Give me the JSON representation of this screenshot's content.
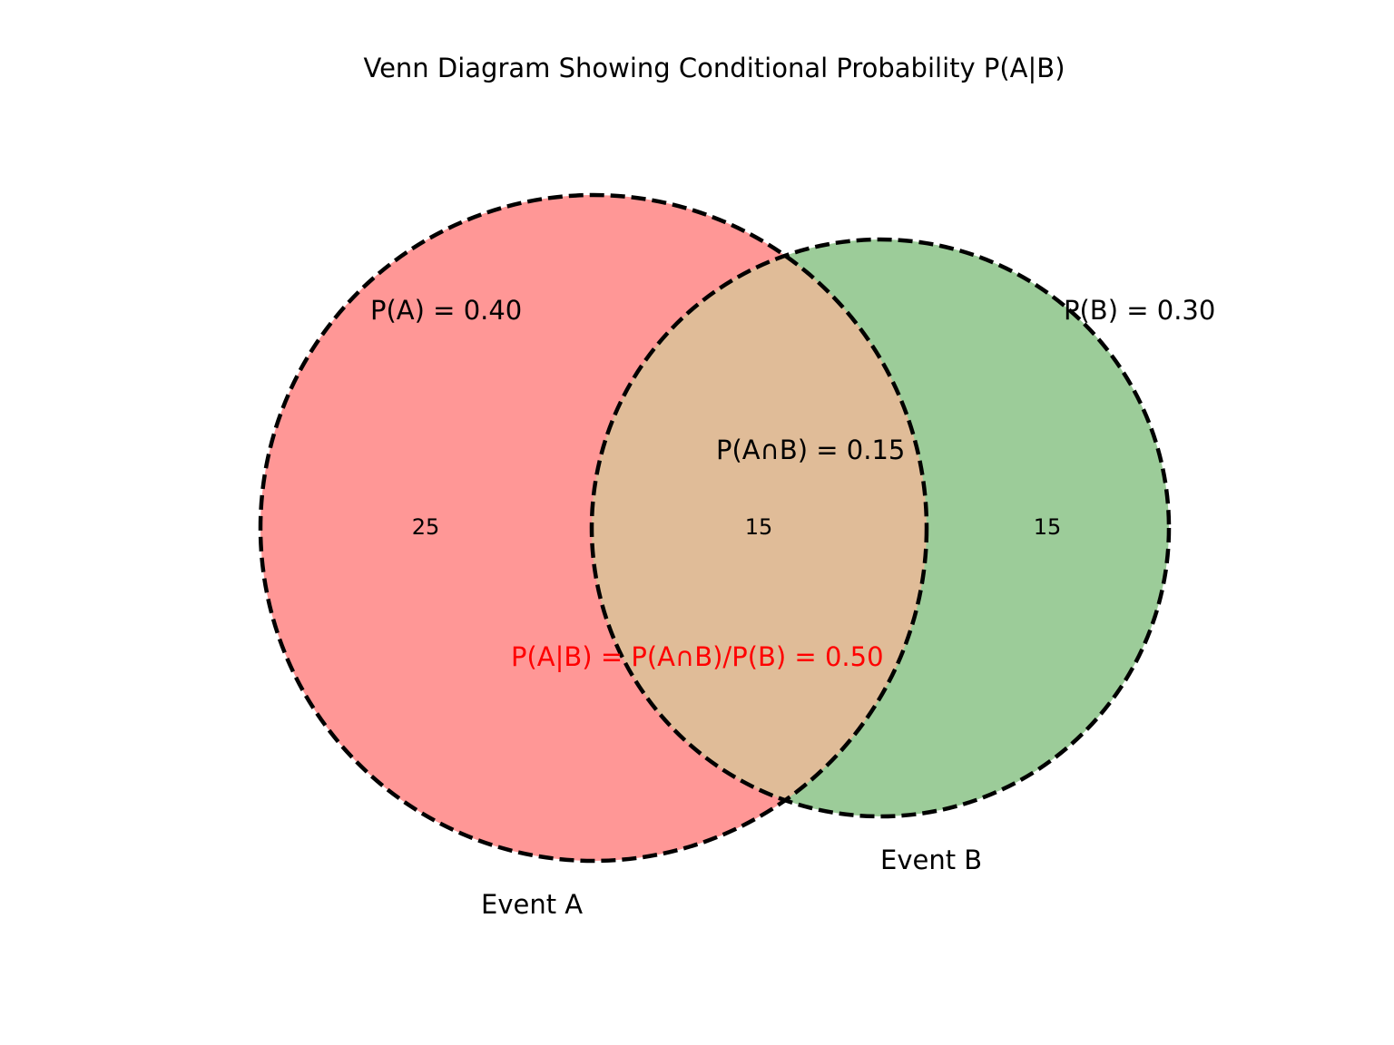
{
  "title": "Venn Diagram Showing Conditional Probability P(A|B)",
  "sets": {
    "a": {
      "set_label": "Event A",
      "probability_label": "P(A) = 0.40",
      "only_count": "25",
      "color": "#ff9796"
    },
    "b": {
      "set_label": "Event B",
      "probability_label": "P(B) = 0.30",
      "only_count": "15",
      "color": "#9ccc99"
    },
    "intersection": {
      "probability_label": "P(A∩B) = 0.15",
      "count": "15",
      "color": "#e0bc98"
    }
  },
  "conditional_formula": {
    "text": "P(A|B) = P(A∩B)/P(B) = 0.50",
    "color": "#ff0000"
  },
  "outline": {
    "color": "#000000",
    "style": "dashed"
  }
}
